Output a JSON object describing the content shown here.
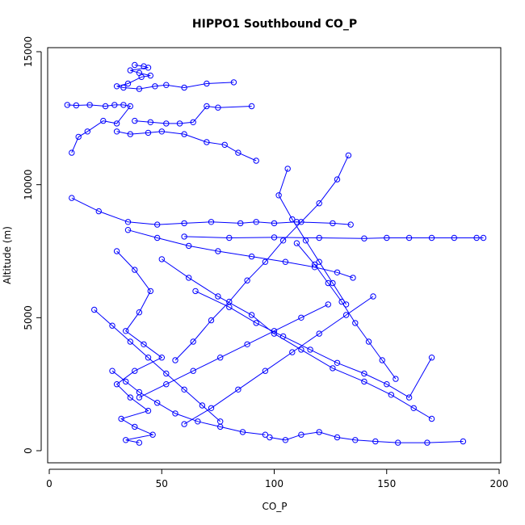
{
  "chart_data": {
    "type": "line",
    "title": "HIPPO1 Southbound CO_P",
    "xlabel": "CO_P",
    "ylabel": "Altitude (m)",
    "xlim": [
      0,
      200
    ],
    "ylim": [
      0,
      15000
    ],
    "x_ticks": [
      "0",
      "50",
      "100",
      "150",
      "200"
    ],
    "y_ticks": [
      "0",
      "5000",
      "10000",
      "15000"
    ],
    "marker": "open-circle",
    "color": "#0000ff",
    "grid": false,
    "series": [
      {
        "x": [
          38,
          42,
          44,
          36,
          40,
          45,
          41,
          35,
          30,
          33,
          40,
          47,
          52,
          60,
          70,
          82
        ],
        "y": [
          14500,
          14450,
          14400,
          14300,
          14200,
          14100,
          14050,
          13800,
          13700,
          13650,
          13600,
          13700,
          13750,
          13650,
          13800,
          13850
        ]
      },
      {
        "x": [
          8,
          12,
          18,
          25,
          29,
          33,
          36,
          30,
          24,
          17,
          13,
          10
        ],
        "y": [
          13000,
          12980,
          13000,
          12950,
          13000,
          13000,
          12950,
          12300,
          12400,
          12000,
          11800,
          11200
        ]
      },
      {
        "x": [
          38,
          45,
          52,
          58,
          64,
          70,
          75,
          90
        ],
        "y": [
          12400,
          12350,
          12300,
          12300,
          12350,
          12950,
          12900,
          12950
        ]
      },
      {
        "x": [
          30,
          36,
          44,
          50,
          60,
          70,
          78,
          84,
          92
        ],
        "y": [
          12000,
          11900,
          11950,
          12000,
          11900,
          11600,
          11500,
          11200,
          10900
        ]
      },
      {
        "x": [
          10,
          22,
          35,
          48,
          60,
          72,
          85,
          92,
          100,
          110,
          126,
          134
        ],
        "y": [
          9500,
          9000,
          8600,
          8500,
          8550,
          8600,
          8550,
          8600,
          8550,
          8600,
          8550,
          8500
        ]
      },
      {
        "x": [
          60,
          80,
          100,
          120,
          140,
          150,
          160,
          170,
          180,
          190,
          193
        ],
        "y": [
          8050,
          8000,
          8020,
          8000,
          7980,
          8000,
          8000,
          8000,
          8000,
          8000,
          8000
        ]
      },
      {
        "x": [
          35,
          48,
          62,
          75,
          90,
          105,
          118,
          128,
          135
        ],
        "y": [
          8300,
          8000,
          7700,
          7500,
          7300,
          7100,
          6900,
          6700,
          6500
        ]
      },
      {
        "x": [
          30,
          38,
          45,
          40,
          34,
          42,
          50,
          38,
          30,
          36,
          44,
          32,
          38,
          46,
          34,
          40
        ],
        "y": [
          7500,
          6800,
          6000,
          5200,
          4500,
          4000,
          3500,
          3000,
          2500,
          2000,
          1500,
          1200,
          900,
          600,
          400,
          300
        ]
      },
      {
        "x": [
          50,
          62,
          75,
          90,
          100,
          112,
          126,
          140,
          152,
          162,
          170
        ],
        "y": [
          7200,
          6500,
          5800,
          5100,
          4400,
          3800,
          3100,
          2600,
          2100,
          1600,
          1200
        ]
      },
      {
        "x": [
          98,
          105,
          112,
          120,
          128,
          136,
          145,
          155,
          168,
          184
        ],
        "y": [
          500,
          400,
          600,
          700,
          500,
          400,
          350,
          300,
          300,
          350
        ]
      },
      {
        "x": [
          65,
          80,
          92,
          104,
          116,
          128,
          140,
          150,
          160,
          170
        ],
        "y": [
          6000,
          5400,
          4800,
          4300,
          3800,
          3300,
          2900,
          2500,
          2000,
          3500
        ]
      },
      {
        "x": [
          28,
          34,
          40,
          48,
          56,
          66,
          76,
          86,
          96
        ],
        "y": [
          3000,
          2600,
          2200,
          1800,
          1400,
          1100,
          900,
          700,
          600
        ]
      },
      {
        "x": [
          110,
          118,
          124,
          130,
          136,
          142,
          148,
          154
        ],
        "y": [
          7800,
          7000,
          6300,
          5600,
          4800,
          4100,
          3400,
          2700
        ]
      },
      {
        "x": [
          106,
          102,
          108,
          114,
          120,
          126,
          132
        ],
        "y": [
          10600,
          9600,
          8700,
          7900,
          7100,
          6300,
          5500
        ]
      },
      {
        "x": [
          40,
          52,
          64,
          76,
          88,
          100,
          112,
          124
        ],
        "y": [
          2000,
          2500,
          3000,
          3500,
          4000,
          4500,
          5000,
          5500
        ]
      },
      {
        "x": [
          133,
          128,
          120,
          112,
          104,
          96,
          88,
          80,
          72,
          64,
          56
        ],
        "y": [
          11100,
          10200,
          9300,
          8600,
          7900,
          7100,
          6400,
          5600,
          4900,
          4100,
          3400
        ]
      },
      {
        "x": [
          20,
          28,
          36,
          44,
          52,
          60,
          68,
          76
        ],
        "y": [
          5300,
          4700,
          4100,
          3500,
          2900,
          2300,
          1700,
          1100
        ]
      },
      {
        "x": [
          60,
          72,
          84,
          96,
          108,
          120,
          132,
          144
        ],
        "y": [
          1000,
          1600,
          2300,
          3000,
          3700,
          4400,
          5100,
          5800
        ]
      }
    ]
  }
}
